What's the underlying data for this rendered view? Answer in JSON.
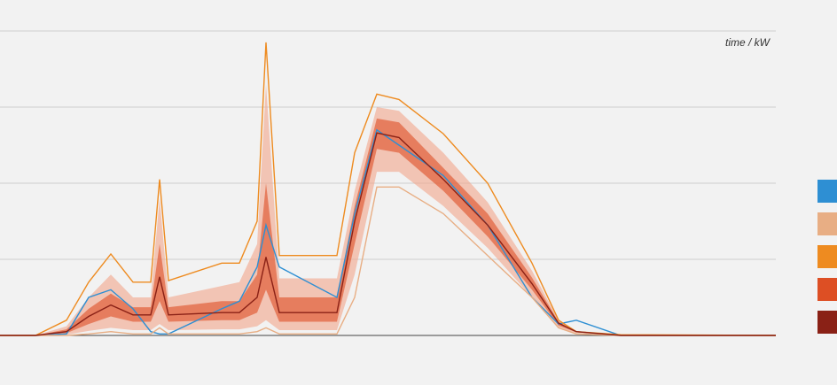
{
  "chart_data": {
    "type": "fan",
    "annotation": "time / kW",
    "x": [
      0,
      1.6,
      3,
      4,
      5,
      6,
      6.8,
      7.2,
      7.6,
      10,
      10.8,
      11.6,
      12,
      12.6,
      15.2,
      16,
      17,
      18,
      20,
      22,
      24,
      25.2,
      26,
      28,
      35
    ],
    "xlim": [
      0,
      35
    ],
    "ylim": [
      0,
      4
    ],
    "yticks": [
      0,
      1,
      2,
      3,
      4
    ],
    "grid": true,
    "bands": [
      {
        "color": "#f2a58a",
        "lower": [
          0,
          0,
          0.01,
          0.06,
          0.1,
          0.07,
          0.07,
          0.15,
          0.07,
          0.08,
          0.08,
          0.12,
          0.2,
          0.07,
          0.07,
          0.8,
          2.15,
          2.15,
          1.7,
          1.15,
          0.5,
          0.1,
          0.03,
          0,
          0
        ],
        "upper": [
          0,
          0,
          0.12,
          0.5,
          0.8,
          0.5,
          0.5,
          1.8,
          0.5,
          0.65,
          0.7,
          1.2,
          3.3,
          0.75,
          0.75,
          1.9,
          3.0,
          2.95,
          2.4,
          1.75,
          0.85,
          0.2,
          0.05,
          0,
          0
        ]
      },
      {
        "color": "#dd4f24",
        "lower": [
          0,
          0,
          0.03,
          0.15,
          0.25,
          0.18,
          0.18,
          0.45,
          0.18,
          0.2,
          0.2,
          0.3,
          0.6,
          0.18,
          0.18,
          1.2,
          2.45,
          2.4,
          1.9,
          1.3,
          0.6,
          0.13,
          0.04,
          0,
          0
        ],
        "upper": [
          0,
          0,
          0.08,
          0.35,
          0.55,
          0.37,
          0.37,
          1.2,
          0.37,
          0.45,
          0.45,
          0.8,
          2.0,
          0.5,
          0.5,
          1.7,
          2.85,
          2.8,
          2.2,
          1.6,
          0.76,
          0.18,
          0.05,
          0,
          0
        ]
      }
    ],
    "series": [
      {
        "color": "#2e8fd3",
        "values": [
          0,
          0,
          0.02,
          0.5,
          0.6,
          0.35,
          0.05,
          0.02,
          0.02,
          0.35,
          0.45,
          0.9,
          1.45,
          0.9,
          0.5,
          1.6,
          2.7,
          2.5,
          2.1,
          1.45,
          0.5,
          0.15,
          0.2,
          0,
          0
        ]
      },
      {
        "color": "#e8ae84",
        "values": [
          0,
          0,
          0,
          0.02,
          0.05,
          0.02,
          0.02,
          0.1,
          0.02,
          0.02,
          0.02,
          0.05,
          0.1,
          0.02,
          0.02,
          0.5,
          1.95,
          1.95,
          1.6,
          1.05,
          0.5,
          0.1,
          0.02,
          0,
          0
        ]
      },
      {
        "color": "#ee8b20",
        "values": [
          0,
          0,
          0.2,
          0.7,
          1.07,
          0.7,
          0.7,
          2.05,
          0.72,
          0.95,
          0.95,
          1.5,
          3.85,
          1.05,
          1.05,
          2.4,
          3.17,
          3.1,
          2.65,
          2.0,
          0.95,
          0.2,
          0.05,
          0.01,
          0
        ]
      },
      {
        "color": "#8a2116",
        "values": [
          0,
          0,
          0.05,
          0.25,
          0.4,
          0.27,
          0.27,
          0.77,
          0.27,
          0.3,
          0.3,
          0.5,
          1.03,
          0.3,
          0.3,
          1.5,
          2.66,
          2.6,
          2.05,
          1.45,
          0.68,
          0.16,
          0.05,
          0,
          0
        ]
      }
    ]
  }
}
